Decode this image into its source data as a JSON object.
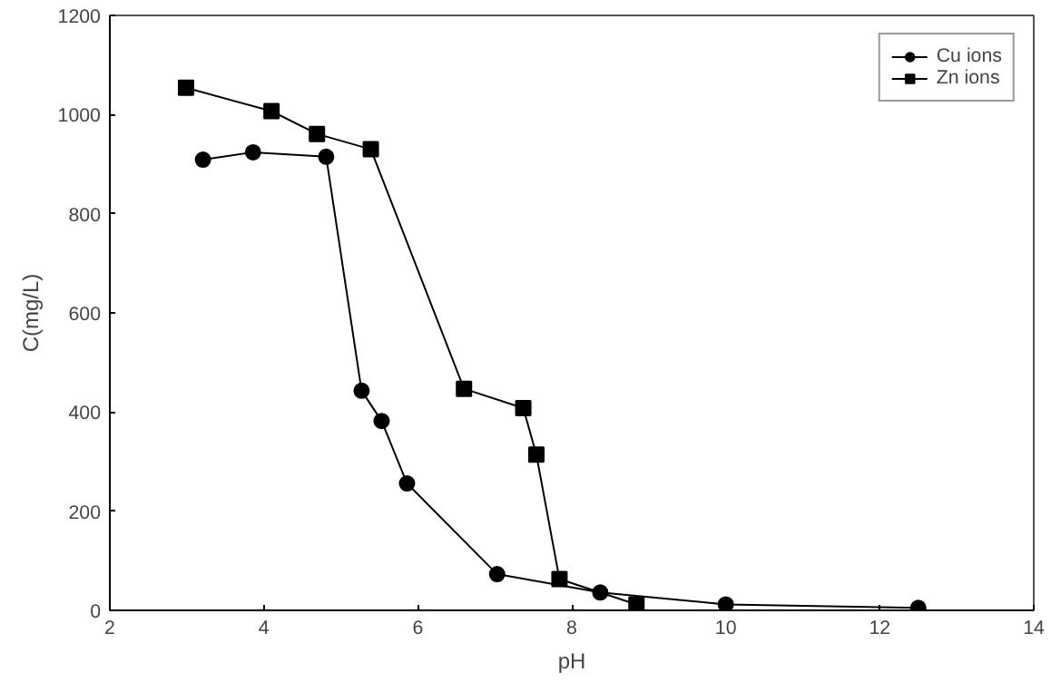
{
  "chart_data": {
    "type": "line",
    "xlabel": "pH",
    "ylabel": "C(mg/L)",
    "xlim": [
      2,
      14
    ],
    "ylim": [
      0,
      1200
    ],
    "xticks": [
      2,
      4,
      6,
      8,
      10,
      12,
      14
    ],
    "yticks": [
      0,
      200,
      400,
      600,
      800,
      1000,
      1200
    ],
    "grid": false,
    "legend": "top right",
    "line_style": "solid",
    "series": [
      {
        "name": "Cu ions",
        "color": "#000000",
        "marker": "circle",
        "x": [
          3.21,
          3.86,
          4.81,
          5.27,
          5.53,
          5.86,
          7.03,
          8.37,
          10.0,
          12.5
        ],
        "values": [
          909,
          924,
          915,
          443,
          382,
          256,
          73,
          36,
          12,
          5
        ]
      },
      {
        "name": "Zn ions",
        "color": "#000000",
        "marker": "square",
        "x": [
          2.99,
          4.1,
          4.69,
          5.39,
          6.6,
          7.37,
          7.54,
          7.84,
          8.84
        ],
        "values": [
          1054,
          1007,
          961,
          930,
          447,
          408,
          314,
          63,
          12
        ]
      }
    ]
  }
}
